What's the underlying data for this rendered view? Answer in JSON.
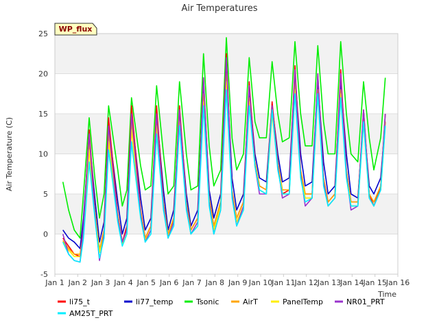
{
  "chart_data": {
    "type": "line",
    "title": "Air Temperatures",
    "xlabel": "Time",
    "ylabel": "Air Temperature (C)",
    "badge": "WP_flux",
    "xlim": [
      1,
      16
    ],
    "ylim": [
      -5,
      25
    ],
    "yticks": [
      -5,
      0,
      5,
      10,
      15,
      20,
      25
    ],
    "xtick_positions": [
      1,
      2,
      3,
      4,
      5,
      6,
      7,
      8,
      9,
      10,
      11,
      12,
      13,
      14,
      15,
      16
    ],
    "xtick_labels": [
      "Jan 1",
      "Jan 2",
      "Jan 3",
      "Jan 4",
      "Jan 5",
      "Jan 6",
      "Jan 7",
      "Jan 8",
      "Jan 9",
      "Jan 10",
      "Jan 11",
      "Jan 12",
      "Jan 13",
      "Jan 14",
      "Jan 15",
      "Jan 16"
    ],
    "grid": true,
    "banded_background": true,
    "legend_position": "bottom",
    "series": [
      {
        "name": "li75_t",
        "color": "#ff0000",
        "x": [
          1.35,
          1.6,
          1.85,
          2.1,
          2.25,
          2.5,
          2.75,
          2.95,
          3.15,
          3.35,
          3.75,
          3.95,
          4.15,
          4.35,
          4.75,
          4.95,
          5.2,
          5.45,
          5.75,
          5.95,
          6.2,
          6.45,
          6.75,
          6.95,
          7.25,
          7.5,
          7.75,
          7.95,
          8.25,
          8.5,
          8.75,
          8.95,
          9.25,
          9.5,
          9.75,
          9.95,
          10.25,
          10.5,
          10.75,
          10.95,
          11.25,
          11.5,
          11.75,
          11.95,
          12.25,
          12.5,
          12.75,
          12.95,
          13.25,
          13.5,
          13.75,
          13.95,
          14.25,
          14.5,
          14.75,
          14.95,
          15.25,
          15.45
        ],
        "y": [
          -0.5,
          -1.5,
          -2.5,
          -2.8,
          1.0,
          13.0,
          3.0,
          -2.0,
          0.5,
          14.5,
          2.5,
          -1.0,
          1.0,
          16.0,
          3.0,
          -0.5,
          1.0,
          16.0,
          4.0,
          -0.3,
          2.0,
          16.0,
          4.0,
          0.5,
          2.0,
          19.5,
          4.5,
          1.0,
          4.0,
          22.5,
          5.0,
          2.0,
          4.0,
          19.0,
          9.0,
          6.0,
          5.5,
          16.5,
          9.0,
          5.0,
          5.5,
          21.0,
          8.0,
          5.0,
          5.0,
          20.0,
          7.0,
          4.0,
          5.0,
          20.5,
          8.0,
          4.0,
          4.0,
          15.5,
          5.0,
          3.5,
          6.0,
          15.0
        ]
      },
      {
        "name": "li77_temp",
        "color": "#0000cc",
        "x": [
          1.35,
          1.6,
          1.85,
          2.1,
          2.25,
          2.5,
          2.75,
          2.95,
          3.15,
          3.35,
          3.75,
          3.95,
          4.15,
          4.35,
          4.75,
          4.95,
          5.2,
          5.45,
          5.75,
          5.95,
          6.2,
          6.45,
          6.75,
          6.95,
          7.25,
          7.5,
          7.75,
          7.95,
          8.25,
          8.5,
          8.75,
          8.95,
          9.25,
          9.5,
          9.75,
          9.95,
          10.25,
          10.5,
          10.75,
          10.95,
          11.25,
          11.5,
          11.75,
          11.95,
          12.25,
          12.5,
          12.75,
          12.95,
          13.25,
          13.5,
          13.75,
          13.95,
          14.25,
          14.5,
          14.75,
          14.95,
          15.25,
          15.45
        ],
        "y": [
          0.5,
          -0.5,
          -1.0,
          -1.8,
          2.0,
          12.0,
          4.5,
          -1.0,
          1.5,
          13.5,
          4.0,
          0.0,
          2.0,
          15.0,
          4.5,
          0.5,
          2.0,
          15.0,
          5.5,
          0.5,
          3.0,
          15.0,
          5.0,
          1.0,
          3.0,
          18.5,
          5.5,
          2.0,
          5.0,
          21.0,
          7.0,
          3.0,
          5.0,
          18.0,
          10.0,
          7.0,
          6.5,
          16.0,
          10.0,
          6.5,
          7.0,
          20.0,
          10.0,
          6.0,
          6.5,
          19.0,
          9.0,
          5.0,
          6.0,
          19.0,
          10.0,
          5.0,
          4.5,
          14.5,
          6.0,
          5.0,
          7.0,
          14.0
        ]
      },
      {
        "name": "Tsonic",
        "color": "#00ee00",
        "x": [
          1.35,
          1.6,
          1.85,
          2.1,
          2.25,
          2.5,
          2.75,
          2.95,
          3.15,
          3.35,
          3.75,
          3.95,
          4.15,
          4.35,
          4.75,
          4.95,
          5.2,
          5.45,
          5.75,
          5.95,
          6.2,
          6.45,
          6.75,
          6.95,
          7.25,
          7.5,
          7.75,
          7.95,
          8.25,
          8.5,
          8.75,
          8.95,
          9.25,
          9.5,
          9.75,
          9.95,
          10.25,
          10.5,
          10.75,
          10.95,
          11.25,
          11.5,
          11.75,
          11.95,
          12.25,
          12.5,
          12.75,
          12.95,
          13.25,
          13.5,
          13.75,
          13.95,
          14.25,
          14.5,
          14.75,
          14.95,
          15.25,
          15.45
        ],
        "y": [
          6.5,
          3.0,
          0.5,
          -0.5,
          5.0,
          14.5,
          7.0,
          2.0,
          5.0,
          16.0,
          8.0,
          3.5,
          5.5,
          17.0,
          8.5,
          5.5,
          6.0,
          18.5,
          10.0,
          5.0,
          6.0,
          19.0,
          10.0,
          5.5,
          6.0,
          22.5,
          11.0,
          6.0,
          8.0,
          24.5,
          12.0,
          8.0,
          10.0,
          22.0,
          14.0,
          12.0,
          12.0,
          21.5,
          15.0,
          11.5,
          12.0,
          24.0,
          15.0,
          11.0,
          11.0,
          23.5,
          14.0,
          10.0,
          10.0,
          24.0,
          15.0,
          10.0,
          9.0,
          19.0,
          12.0,
          8.0,
          12.0,
          19.5
        ]
      },
      {
        "name": "AirT",
        "color": "#ffa500",
        "x": [
          1.35,
          1.6,
          1.85,
          2.1,
          2.25,
          2.5,
          2.75,
          2.95,
          3.15,
          3.35,
          3.75,
          3.95,
          4.15,
          4.35,
          4.75,
          4.95,
          5.2,
          5.45,
          5.75,
          5.95,
          6.2,
          6.45,
          6.75,
          6.95,
          7.25,
          7.5,
          7.75,
          7.95,
          8.25,
          8.5,
          8.75,
          8.95,
          9.25,
          9.5,
          9.75,
          9.95,
          10.25,
          10.5,
          10.75,
          10.95,
          11.25,
          11.5,
          11.75,
          11.95,
          12.25,
          12.5,
          12.75,
          12.95,
          13.25,
          13.5,
          13.75,
          13.95,
          14.25,
          14.5,
          14.75,
          14.95,
          15.25,
          15.45
        ],
        "y": [
          -0.8,
          -1.8,
          -2.5,
          -2.5,
          0.5,
          11.5,
          3.0,
          -2.0,
          0.5,
          12.5,
          2.5,
          -1.0,
          0.5,
          14.0,
          3.0,
          -0.5,
          1.0,
          14.5,
          4.0,
          0.0,
          2.0,
          14.5,
          4.0,
          0.5,
          2.0,
          17.5,
          4.5,
          1.0,
          4.0,
          20.0,
          5.5,
          2.0,
          4.0,
          17.0,
          9.0,
          6.0,
          5.5,
          15.5,
          9.0,
          5.5,
          5.5,
          19.0,
          8.0,
          5.0,
          5.0,
          18.0,
          7.0,
          4.0,
          5.0,
          18.0,
          8.0,
          4.0,
          4.0,
          14.5,
          5.0,
          4.0,
          6.0,
          14.0
        ]
      },
      {
        "name": "PanelTemp",
        "color": "#ffee00",
        "x": [
          1.35,
          1.6,
          1.85,
          2.1,
          2.25,
          2.5,
          2.75,
          2.95,
          3.15,
          3.35,
          3.75,
          3.95,
          4.15,
          4.35,
          4.75,
          4.95,
          5.2,
          5.45,
          5.75,
          5.95,
          6.2,
          6.45,
          6.75,
          6.95,
          7.25,
          7.5,
          7.75,
          7.95,
          8.25,
          8.5,
          8.75,
          8.95,
          9.25,
          9.5,
          9.75,
          9.95,
          10.25,
          10.5,
          10.75,
          10.95,
          11.25,
          11.5,
          11.75,
          11.95,
          12.25,
          12.5,
          12.75,
          12.95,
          13.25,
          13.5,
          13.75,
          13.95,
          14.25,
          14.5,
          14.75,
          14.95,
          15.25,
          15.45
        ],
        "y": [
          -1.0,
          -2.0,
          -2.8,
          -2.8,
          0.0,
          10.5,
          2.5,
          -2.3,
          0.0,
          11.5,
          2.0,
          -1.3,
          0.0,
          13.0,
          2.5,
          -0.8,
          0.5,
          13.5,
          3.5,
          -0.3,
          1.5,
          14.0,
          3.5,
          0.0,
          1.5,
          16.5,
          4.0,
          0.5,
          3.5,
          19.0,
          5.0,
          1.5,
          3.5,
          16.5,
          8.5,
          5.5,
          5.0,
          15.0,
          8.5,
          5.0,
          5.0,
          18.0,
          7.5,
          4.5,
          4.5,
          17.5,
          6.5,
          3.5,
          4.5,
          17.5,
          7.5,
          3.5,
          3.5,
          14.0,
          4.5,
          3.5,
          5.5,
          13.5
        ]
      },
      {
        "name": "NR01_PRT",
        "color": "#9932cc",
        "x": [
          1.35,
          1.6,
          1.85,
          2.1,
          2.25,
          2.5,
          2.75,
          2.95,
          3.15,
          3.35,
          3.75,
          3.95,
          4.15,
          4.35,
          4.75,
          4.95,
          5.2,
          5.45,
          5.75,
          5.95,
          6.2,
          6.45,
          6.75,
          6.95,
          7.25,
          7.5,
          7.75,
          7.95,
          8.25,
          8.5,
          8.75,
          8.95,
          9.25,
          9.5,
          9.75,
          9.95,
          10.25,
          10.5,
          10.75,
          10.95,
          11.25,
          11.5,
          11.75,
          11.95,
          12.25,
          12.5,
          12.75,
          12.95,
          13.25,
          13.5,
          13.75,
          13.95,
          14.25,
          14.5,
          14.75,
          14.95,
          15.25,
          15.45
        ],
        "y": [
          0.0,
          -2.5,
          -3.3,
          -3.5,
          1.0,
          12.5,
          2.5,
          -3.3,
          0.0,
          13.5,
          2.0,
          -1.0,
          0.5,
          15.0,
          2.5,
          -1.0,
          0.5,
          15.0,
          3.5,
          -0.5,
          1.5,
          15.5,
          3.5,
          0.0,
          1.5,
          19.5,
          4.0,
          0.0,
          3.0,
          22.0,
          5.0,
          1.0,
          3.5,
          18.5,
          8.5,
          5.0,
          5.0,
          16.0,
          8.5,
          4.5,
          5.0,
          20.5,
          7.5,
          3.5,
          4.5,
          20.0,
          6.5,
          3.5,
          4.5,
          20.0,
          7.5,
          3.0,
          3.5,
          15.5,
          4.5,
          3.5,
          5.5,
          15.0
        ]
      },
      {
        "name": "AM25T_PRT",
        "color": "#00eeff",
        "x": [
          1.35,
          1.6,
          1.85,
          2.1,
          2.25,
          2.5,
          2.75,
          2.95,
          3.15,
          3.35,
          3.75,
          3.95,
          4.15,
          4.35,
          4.75,
          4.95,
          5.2,
          5.45,
          5.75,
          5.95,
          6.2,
          6.45,
          6.75,
          6.95,
          7.25,
          7.5,
          7.75,
          7.95,
          8.25,
          8.5,
          8.75,
          8.95,
          9.25,
          9.5,
          9.75,
          9.95,
          10.25,
          10.5,
          10.75,
          10.95,
          11.25,
          11.5,
          11.75,
          11.95,
          12.25,
          12.5,
          12.75,
          12.95,
          13.25,
          13.5,
          13.75,
          13.95,
          14.25,
          14.5,
          14.75,
          14.95,
          15.25,
          15.45
        ],
        "y": [
          -1.0,
          -2.5,
          -3.3,
          -3.5,
          -0.5,
          9.0,
          2.0,
          -3.0,
          -0.5,
          10.5,
          1.5,
          -1.5,
          0.0,
          11.5,
          2.0,
          -1.0,
          0.0,
          12.5,
          3.0,
          -0.5,
          1.0,
          13.5,
          3.0,
          0.0,
          1.0,
          16.0,
          3.5,
          0.0,
          3.0,
          18.0,
          4.5,
          1.0,
          3.0,
          16.0,
          8.5,
          5.5,
          5.0,
          15.5,
          8.0,
          5.0,
          5.0,
          17.5,
          7.0,
          4.0,
          4.5,
          17.5,
          6.0,
          3.5,
          4.5,
          17.0,
          7.0,
          3.5,
          3.5,
          14.0,
          4.5,
          3.5,
          5.5,
          13.5
        ]
      }
    ]
  }
}
